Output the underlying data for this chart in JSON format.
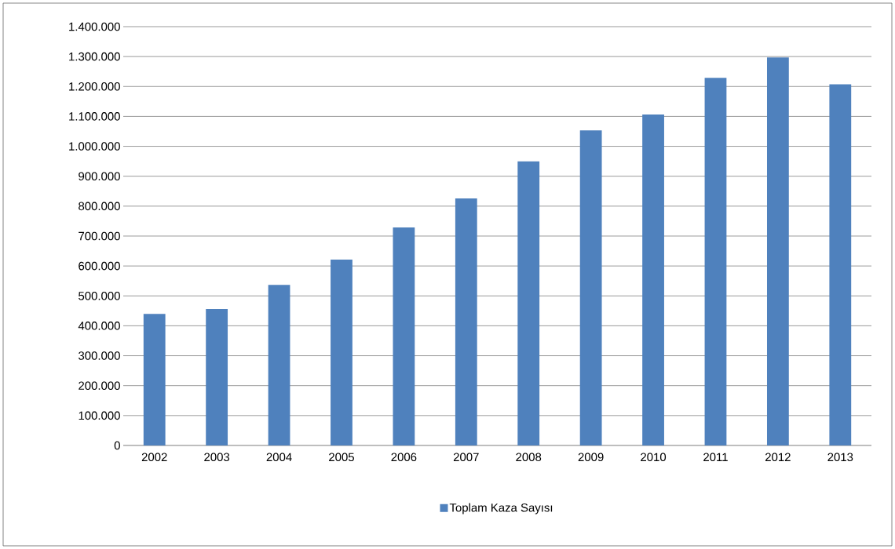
{
  "chart_data": {
    "type": "bar",
    "categories": [
      "2002",
      "2003",
      "2004",
      "2005",
      "2006",
      "2007",
      "2008",
      "2009",
      "2010",
      "2011",
      "2012",
      "2013"
    ],
    "series": [
      {
        "name": "Toplam Kaza Sayısı",
        "color": "#4f81bd",
        "values": [
          440000,
          456000,
          537000,
          621000,
          729000,
          826000,
          950000,
          1053000,
          1106000,
          1229000,
          1297000,
          1207000
        ]
      }
    ],
    "ylim": [
      0,
      1400000
    ],
    "yticks": [
      0,
      {
        "value": 100000,
        "label": "100.000"
      },
      {
        "value": 200000,
        "label": "200.000"
      },
      {
        "value": 300000,
        "label": "300.000"
      },
      {
        "value": 400000,
        "label": "400.000"
      },
      {
        "value": 500000,
        "label": "500.000"
      },
      {
        "value": 600000,
        "label": "600.000"
      },
      {
        "value": 700000,
        "label": "700.000"
      },
      {
        "value": 800000,
        "label": "800.000"
      },
      {
        "value": 900000,
        "label": "900.000"
      },
      {
        "value": 1000000,
        "label": "1.000.000"
      },
      {
        "value": 1100000,
        "label": "1.100.000"
      },
      {
        "value": 1200000,
        "label": "1.200.000"
      },
      {
        "value": 1300000,
        "label": "1.300.000"
      },
      {
        "value": 1400000,
        "label": "1.400.000"
      }
    ],
    "grid": "y",
    "legend": "bottom"
  }
}
